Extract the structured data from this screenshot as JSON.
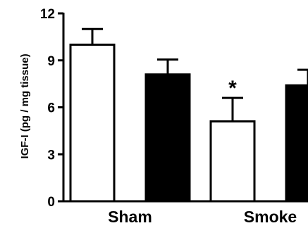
{
  "chart_data": {
    "type": "bar",
    "title": "",
    "xlabel": "",
    "ylabel": "IGF-I (pg / mg tissue)",
    "ylim": [
      0,
      12
    ],
    "yticks": [
      0,
      3,
      6,
      9,
      12
    ],
    "categories": [
      "Sham",
      "Smoke"
    ],
    "series": [
      {
        "values": [
          10.0,
          5.1
        ],
        "errors": [
          1.0,
          1.5
        ],
        "fill": "#ffffff"
      },
      {
        "values": [
          8.1,
          7.4
        ],
        "errors": [
          0.95,
          1.0
        ],
        "fill": "#000000"
      }
    ],
    "annotations": [
      {
        "text": "*",
        "category": "Smoke",
        "series_index": 0
      }
    ],
    "grid": false,
    "legend": "none"
  }
}
